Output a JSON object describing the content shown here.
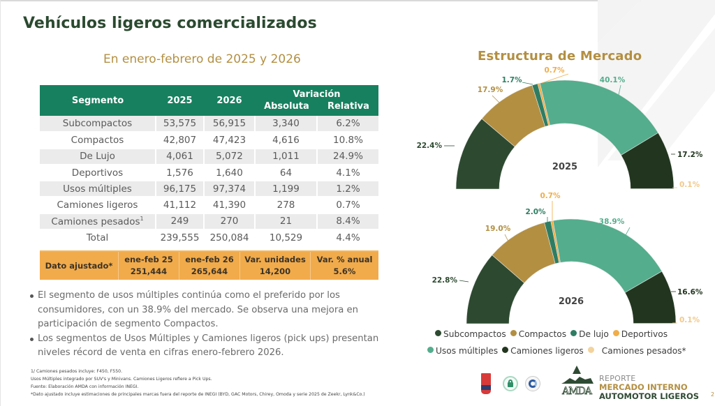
{
  "header": {
    "title": "Vehículos ligeros comercializados",
    "subtitle": "En enero-febrero de 2025 y 2026"
  },
  "table": {
    "headers": {
      "segment": "Segmento",
      "y2025": "2025",
      "y2026": "2026",
      "variation": "Variación",
      "absolute": "Absoluta",
      "relative": "Relativa"
    },
    "rows": [
      {
        "segment": "Subcompactos",
        "y2025": "53,575",
        "y2026": "56,915",
        "abs": "3,340",
        "rel": "6.2%"
      },
      {
        "segment": "Compactos",
        "y2025": "42,807",
        "y2026": "47,423",
        "abs": "4,616",
        "rel": "10.8%"
      },
      {
        "segment": "De Lujo",
        "y2025": "4,061",
        "y2026": "5,072",
        "abs": "1,011",
        "rel": "24.9%"
      },
      {
        "segment": "Deportivos",
        "y2025": "1,576",
        "y2026": "1,640",
        "abs": "64",
        "rel": "4.1%"
      },
      {
        "segment": "Usos múltiples",
        "y2025": "96,175",
        "y2026": "97,374",
        "abs": "1,199",
        "rel": "1.2%"
      },
      {
        "segment": "Camiones ligeros",
        "y2025": "41,112",
        "y2026": "41,390",
        "abs": "278",
        "rel": "0.7%"
      },
      {
        "segment": "Camiones pesados",
        "sup": "1",
        "y2025": "249",
        "y2026": "270",
        "abs": "21",
        "rel": "8.4%"
      },
      {
        "segment": "Total",
        "y2025": "239,555",
        "y2026": "250,084",
        "abs": "10,529",
        "rel": "4.4%"
      }
    ],
    "adjusted": {
      "label": "Dato ajustado*",
      "col1_label": "ene-feb 25",
      "col1_value": "251,444",
      "col2_label": "ene-feb 26",
      "col2_value": "265,644",
      "col3_label": "Var. unidades",
      "col3_value": "14,200",
      "col4_label": "Var. % anual",
      "col4_value": "5.6%"
    }
  },
  "bullets": [
    "El segmento de usos múltiples continúa como el preferido por los consumidores, con un 38.9% del mercado. Se observa una mejora en participación de segmento Compactos.",
    "Los segmentos de Usos Múltiples y Camiones ligeros (pick ups) presentan niveles récord de venta en cifras enero-febrero 2026."
  ],
  "footnotes": [
    "1/ Camiones pesados incluye: F450, F550.",
    "Usos Múltiples integrado por SUV's y Minivans. Camiones Ligeros refiere a Pick Ups.",
    "Fuente: Elaboración AMDA con información INEGI.",
    "*Dato ajustado incluye estimaciones de principales marcas fuera del reporte de INEGI (BYD, GAC Motors, Chirey, Omoda y serie 2025 de Zeekr, Lynk&Co.)"
  ],
  "chart_data": {
    "type": "pie",
    "subtype": "half-donut",
    "title": "Estructura de Mercado",
    "categories": [
      "Subcompactos",
      "Compactos",
      "De lujo",
      "Deportivos",
      "Usos múltiples",
      "Camiones ligeros",
      "Camiones pesados*"
    ],
    "colors": [
      "#2d4a30",
      "#b38f42",
      "#2e7d63",
      "#f0ad48",
      "#54ad8d",
      "#22361f",
      "#f2d39c"
    ],
    "label_colors": [
      "#2d4a30",
      "#b38f42",
      "#2e7d63",
      "#f0ad48",
      "#54ad8d",
      "#22361f",
      "#f2c98a"
    ],
    "series": [
      {
        "name": "2025",
        "values": [
          22.4,
          17.9,
          1.7,
          0.7,
          40.1,
          17.2,
          0.1
        ],
        "labels": [
          "22.4%",
          "17.9%",
          "1.7%",
          "0.7%",
          "40.1%",
          "17.2%",
          "0.1%"
        ]
      },
      {
        "name": "2026",
        "values": [
          22.8,
          19.0,
          2.0,
          0.7,
          38.9,
          16.6,
          0.1
        ],
        "labels": [
          "22.8%",
          "19.0%",
          "2.0%",
          "0.7%",
          "38.9%",
          "16.6%",
          "0.1%"
        ]
      }
    ],
    "legend": "bottom"
  },
  "legend_rows": [
    [
      0,
      1,
      2,
      3
    ],
    [
      4,
      5,
      6
    ]
  ],
  "brand": {
    "line1": "REPORTE",
    "line2": "MERCADO INTERNO",
    "line3": "AUTOMOTOR LIGEROS",
    "page": "2"
  }
}
